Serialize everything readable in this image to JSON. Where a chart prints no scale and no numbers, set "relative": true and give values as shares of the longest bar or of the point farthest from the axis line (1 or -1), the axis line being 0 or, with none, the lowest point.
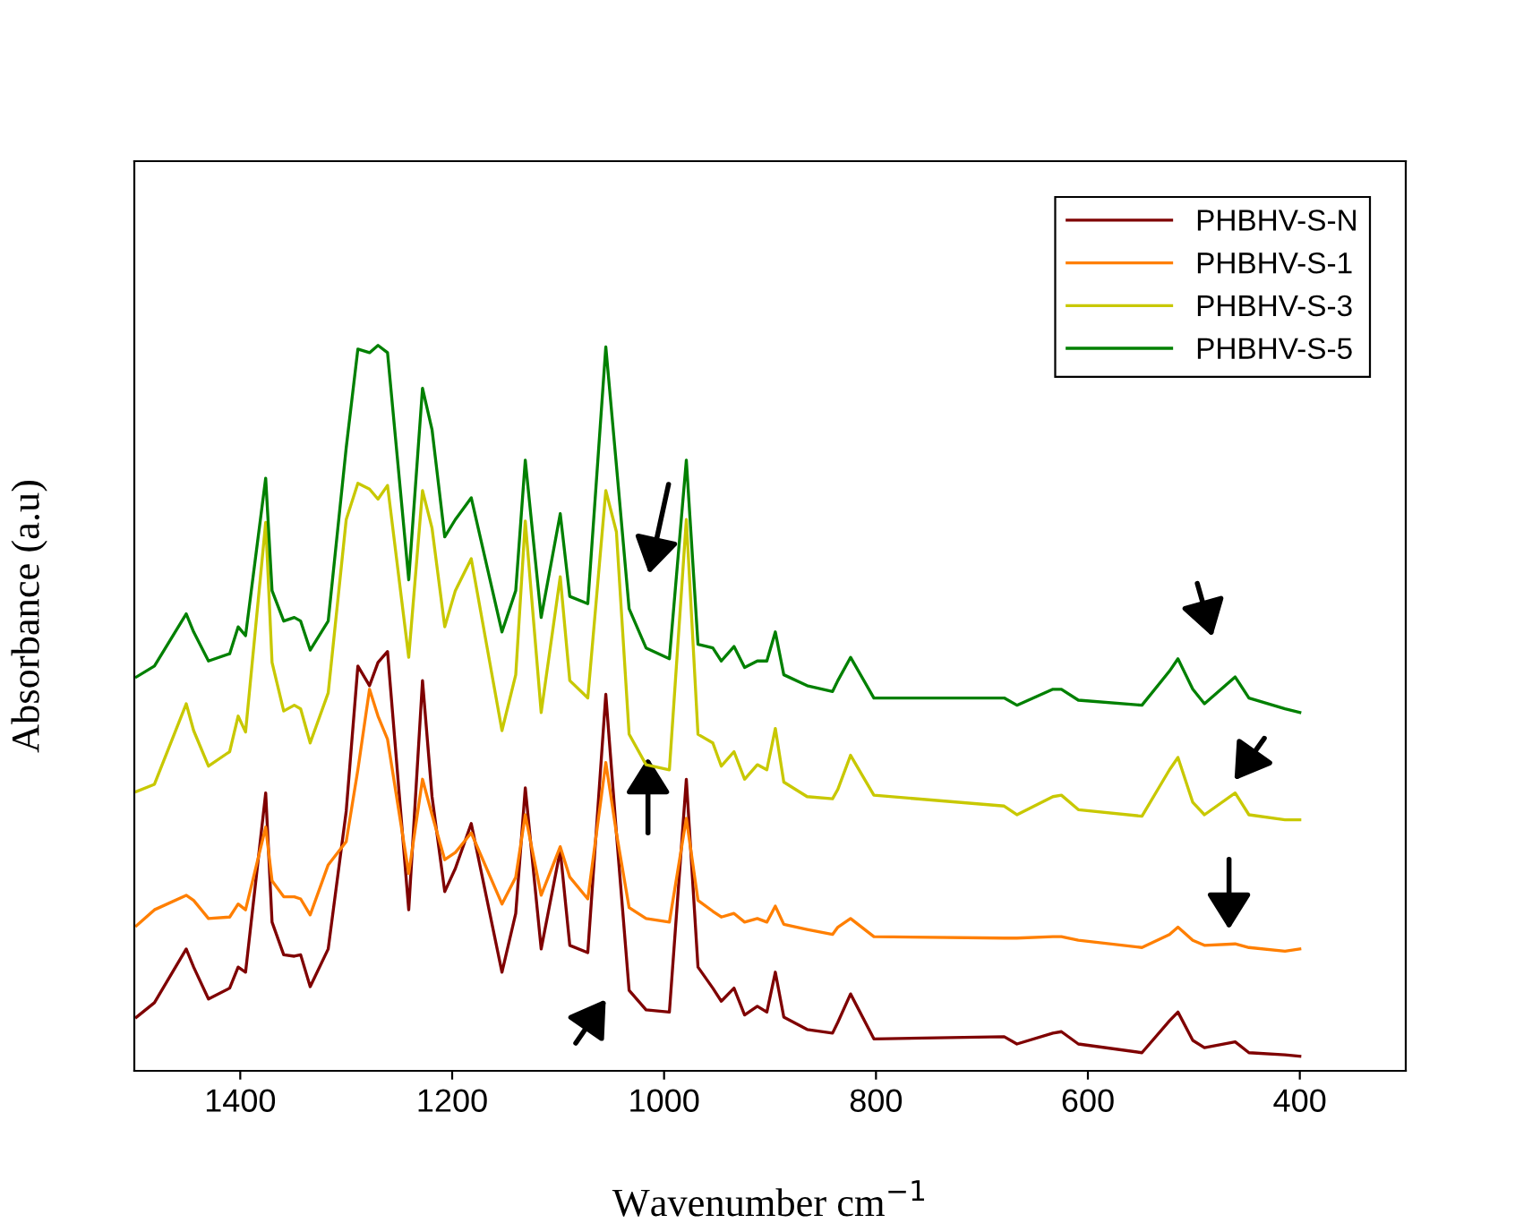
{
  "chart_data": {
    "type": "line",
    "relative": true,
    "xlabel": "Wavenumber cm$^{−1}$",
    "ylabel": "Absorbance (a.u)",
    "x": [
      1498,
      1481,
      1451,
      1444,
      1430,
      1410,
      1402,
      1395,
      1376,
      1370,
      1359,
      1349,
      1343,
      1334,
      1317,
      1300,
      1289,
      1278,
      1270,
      1261,
      1241,
      1228,
      1219,
      1207,
      1197,
      1182,
      1153,
      1140,
      1131,
      1116,
      1098,
      1089,
      1072,
      1055,
      1045,
      1033,
      1017,
      995,
      979,
      968,
      954,
      946,
      934,
      924,
      912,
      903,
      895,
      887,
      865,
      841,
      836,
      824,
      802,
      679,
      667,
      633,
      625,
      609,
      549,
      523,
      515,
      501,
      490,
      461,
      448,
      414,
      400
    ],
    "xlim": [
      1500,
      300
    ],
    "xticks": [
      1400,
      1200,
      1000,
      800,
      600,
      400
    ],
    "legend": "top right",
    "grid": false,
    "line_style": "solid",
    "marker": "none",
    "series": [
      {
        "name": "PHBHV-S-N",
        "color": "#7f0000",
        "values": [
          0.074,
          0.094,
          0.168,
          0.143,
          0.099,
          0.114,
          0.143,
          0.136,
          0.383,
          0.205,
          0.16,
          0.158,
          0.16,
          0.116,
          0.168,
          0.358,
          0.558,
          0.531,
          0.563,
          0.578,
          0.222,
          0.538,
          0.378,
          0.247,
          0.279,
          0.341,
          0.136,
          0.217,
          0.39,
          0.168,
          0.304,
          0.173,
          0.163,
          0.519,
          0.328,
          0.111,
          0.084,
          0.081,
          0.402,
          0.143,
          0.114,
          0.096,
          0.114,
          0.077,
          0.089,
          0.081,
          0.136,
          0.074,
          0.057,
          0.052,
          0.067,
          0.106,
          0.044,
          0.047,
          0.037,
          0.052,
          0.054,
          0.037,
          0.025,
          0.069,
          0.081,
          0.042,
          0.032,
          0.04,
          0.025,
          0.022,
          0.02
        ]
      },
      {
        "name": "PHBHV-S-1",
        "color": "#ff7f00",
        "values": [
          0.2,
          0.222,
          0.242,
          0.235,
          0.21,
          0.212,
          0.23,
          0.222,
          0.336,
          0.262,
          0.24,
          0.24,
          0.237,
          0.215,
          0.284,
          0.316,
          0.415,
          0.526,
          0.489,
          0.457,
          0.272,
          0.402,
          0.353,
          0.291,
          0.301,
          0.328,
          0.23,
          0.267,
          0.353,
          0.242,
          0.309,
          0.267,
          0.237,
          0.425,
          0.328,
          0.225,
          0.21,
          0.205,
          0.348,
          0.235,
          0.22,
          0.212,
          0.217,
          0.205,
          0.21,
          0.205,
          0.227,
          0.202,
          0.195,
          0.188,
          0.198,
          0.21,
          0.185,
          0.183,
          0.183,
          0.185,
          0.185,
          0.18,
          0.17,
          0.188,
          0.198,
          0.18,
          0.173,
          0.175,
          0.17,
          0.165,
          0.168
        ]
      },
      {
        "name": "PHBHV-S-3",
        "color": "#c8c800",
        "values": [
          0.385,
          0.395,
          0.506,
          0.469,
          0.42,
          0.44,
          0.489,
          0.467,
          0.756,
          0.563,
          0.496,
          0.504,
          0.499,
          0.452,
          0.521,
          0.76,
          0.81,
          0.802,
          0.788,
          0.807,
          0.57,
          0.8,
          0.748,
          0.612,
          0.662,
          0.706,
          0.469,
          0.546,
          0.758,
          0.494,
          0.681,
          0.538,
          0.514,
          0.8,
          0.743,
          0.464,
          0.422,
          0.415,
          0.76,
          0.464,
          0.452,
          0.42,
          0.44,
          0.402,
          0.422,
          0.415,
          0.472,
          0.398,
          0.378,
          0.375,
          0.388,
          0.435,
          0.38,
          0.365,
          0.353,
          0.378,
          0.38,
          0.36,
          0.351,
          0.415,
          0.432,
          0.37,
          0.353,
          0.383,
          0.353,
          0.346,
          0.346
        ]
      },
      {
        "name": "PHBHV-S-5",
        "color": "#008000",
        "values": [
          0.543,
          0.558,
          0.63,
          0.605,
          0.565,
          0.575,
          0.612,
          0.6,
          0.817,
          0.662,
          0.62,
          0.625,
          0.62,
          0.58,
          0.62,
          0.859,
          0.995,
          0.99,
          1.0,
          0.99,
          0.677,
          0.941,
          0.884,
          0.736,
          0.76,
          0.79,
          0.605,
          0.662,
          0.842,
          0.625,
          0.768,
          0.654,
          0.644,
          0.998,
          0.835,
          0.637,
          0.583,
          0.568,
          0.842,
          0.588,
          0.583,
          0.565,
          0.585,
          0.556,
          0.565,
          0.565,
          0.605,
          0.546,
          0.531,
          0.523,
          0.538,
          0.57,
          0.514,
          0.514,
          0.504,
          0.526,
          0.526,
          0.511,
          0.504,
          0.551,
          0.568,
          0.526,
          0.506,
          0.543,
          0.514,
          0.499,
          0.494
        ]
      }
    ]
  }
}
